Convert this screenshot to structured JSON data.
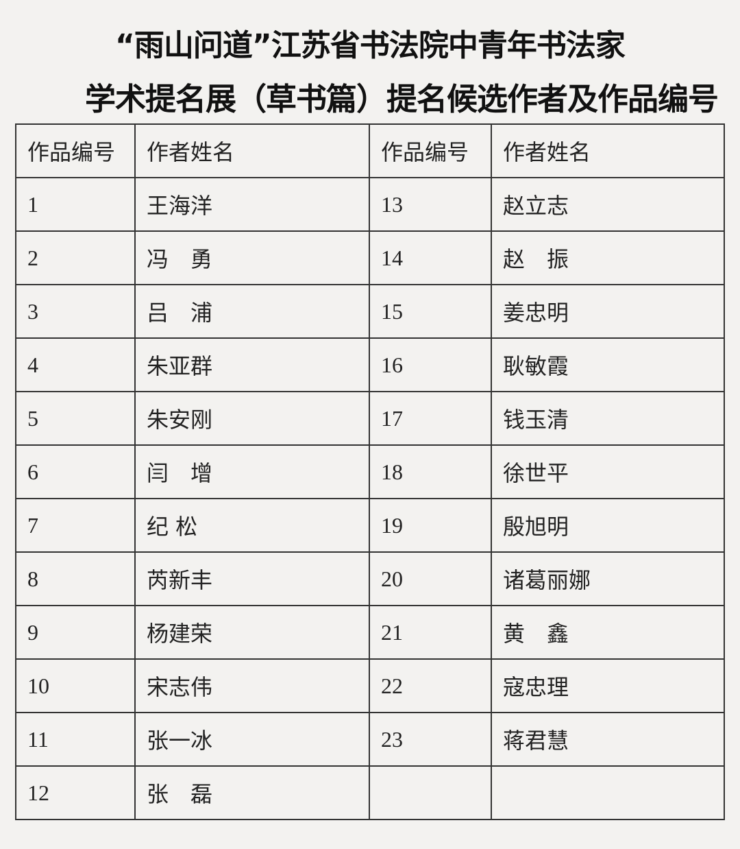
{
  "title_line1": "“雨山问道”江苏省书法院中青年书法家",
  "title_line2": "学术提名展（草书篇）提名候选作者及作品编号",
  "table": {
    "headers": [
      "作品编号",
      "作者姓名",
      "作品编号",
      "作者姓名"
    ],
    "rows": [
      [
        "1",
        "王海洋",
        "13",
        "赵立志"
      ],
      [
        "2",
        "冯　勇",
        "14",
        "赵　振"
      ],
      [
        "3",
        "吕　浦",
        "15",
        "姜忠明"
      ],
      [
        "4",
        "朱亚群",
        "16",
        "耿敏霞"
      ],
      [
        "5",
        "朱安刚",
        "17",
        "钱玉清"
      ],
      [
        "6",
        "闫　增",
        "18",
        "徐世平"
      ],
      [
        "7",
        "纪 松",
        "19",
        "殷旭明"
      ],
      [
        "8",
        "芮新丰",
        "20",
        "诸葛丽娜"
      ],
      [
        "9",
        "杨建荣",
        "21",
        "黄　鑫"
      ],
      [
        "10",
        "宋志伟",
        "22",
        "寇忠理"
      ],
      [
        "11",
        "张一冰",
        "23",
        "蒋君慧"
      ],
      [
        "12",
        "张　磊",
        "",
        ""
      ]
    ]
  }
}
